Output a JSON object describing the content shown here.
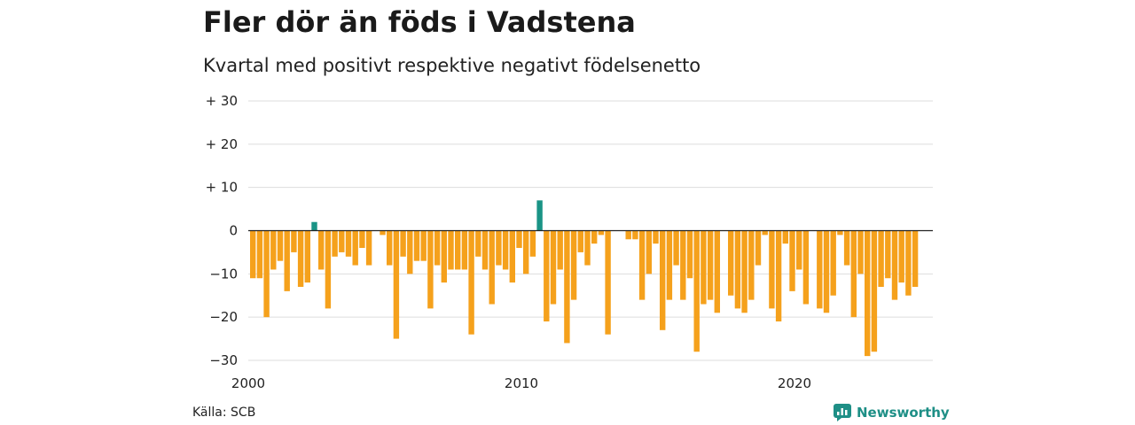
{
  "title": "Fler dör än föds i Vadstena",
  "subtitle": "Kvartal med positivt respektive negativt födelsenetto",
  "source": "Källa: SCB",
  "brand": "Newsworthy",
  "colors": {
    "positive": "#1a9486",
    "negative": "#f5a11c",
    "grid": "#dddddd",
    "zero": "#222222",
    "brand": "#1e8f86"
  },
  "chart_data": {
    "type": "bar",
    "title": "Fler dör än föds i Vadstena",
    "subtitle": "Kvartal med positivt respektive negativt födelsenetto",
    "xlabel": "",
    "ylabel": "",
    "ylim": [
      -30,
      30
    ],
    "y_ticks": [
      {
        "value": 30,
        "label": "+ 30"
      },
      {
        "value": 20,
        "label": "+ 20"
      },
      {
        "value": 10,
        "label": "+ 10"
      },
      {
        "value": 0,
        "label": "0"
      },
      {
        "value": -10,
        "label": "−10"
      },
      {
        "value": -20,
        "label": "−20"
      },
      {
        "value": -30,
        "label": "−30"
      }
    ],
    "x_ticks": [
      "2000",
      "2010",
      "2020"
    ],
    "start": "2000 Q1",
    "grid": true,
    "legend": "none",
    "values": [
      -11,
      -11,
      -20,
      -9,
      -7,
      -14,
      -5,
      -13,
      -12,
      2,
      -9,
      -18,
      -6,
      -5,
      -6,
      -8,
      -4,
      -8,
      null,
      -1,
      -8,
      -25,
      -6,
      -10,
      -7,
      -7,
      -18,
      -8,
      -12,
      -9,
      -9,
      -9,
      -24,
      -6,
      -9,
      -17,
      -8,
      -9,
      -12,
      -4,
      -10,
      -6,
      7,
      -21,
      -17,
      -9,
      -26,
      -16,
      -5,
      -8,
      -3,
      -1,
      -24,
      null,
      null,
      -2,
      -2,
      -16,
      -10,
      -3,
      -23,
      -16,
      -8,
      -16,
      -11,
      -28,
      -17,
      -16,
      -19,
      null,
      -15,
      -18,
      -19,
      -16,
      -8,
      -1,
      -18,
      -21,
      -3,
      -14,
      -9,
      -17,
      null,
      -18,
      -19,
      -15,
      -1,
      -8,
      -20,
      -10,
      -29,
      -28,
      -13,
      -11,
      -16,
      -12,
      -15,
      -13
    ]
  }
}
